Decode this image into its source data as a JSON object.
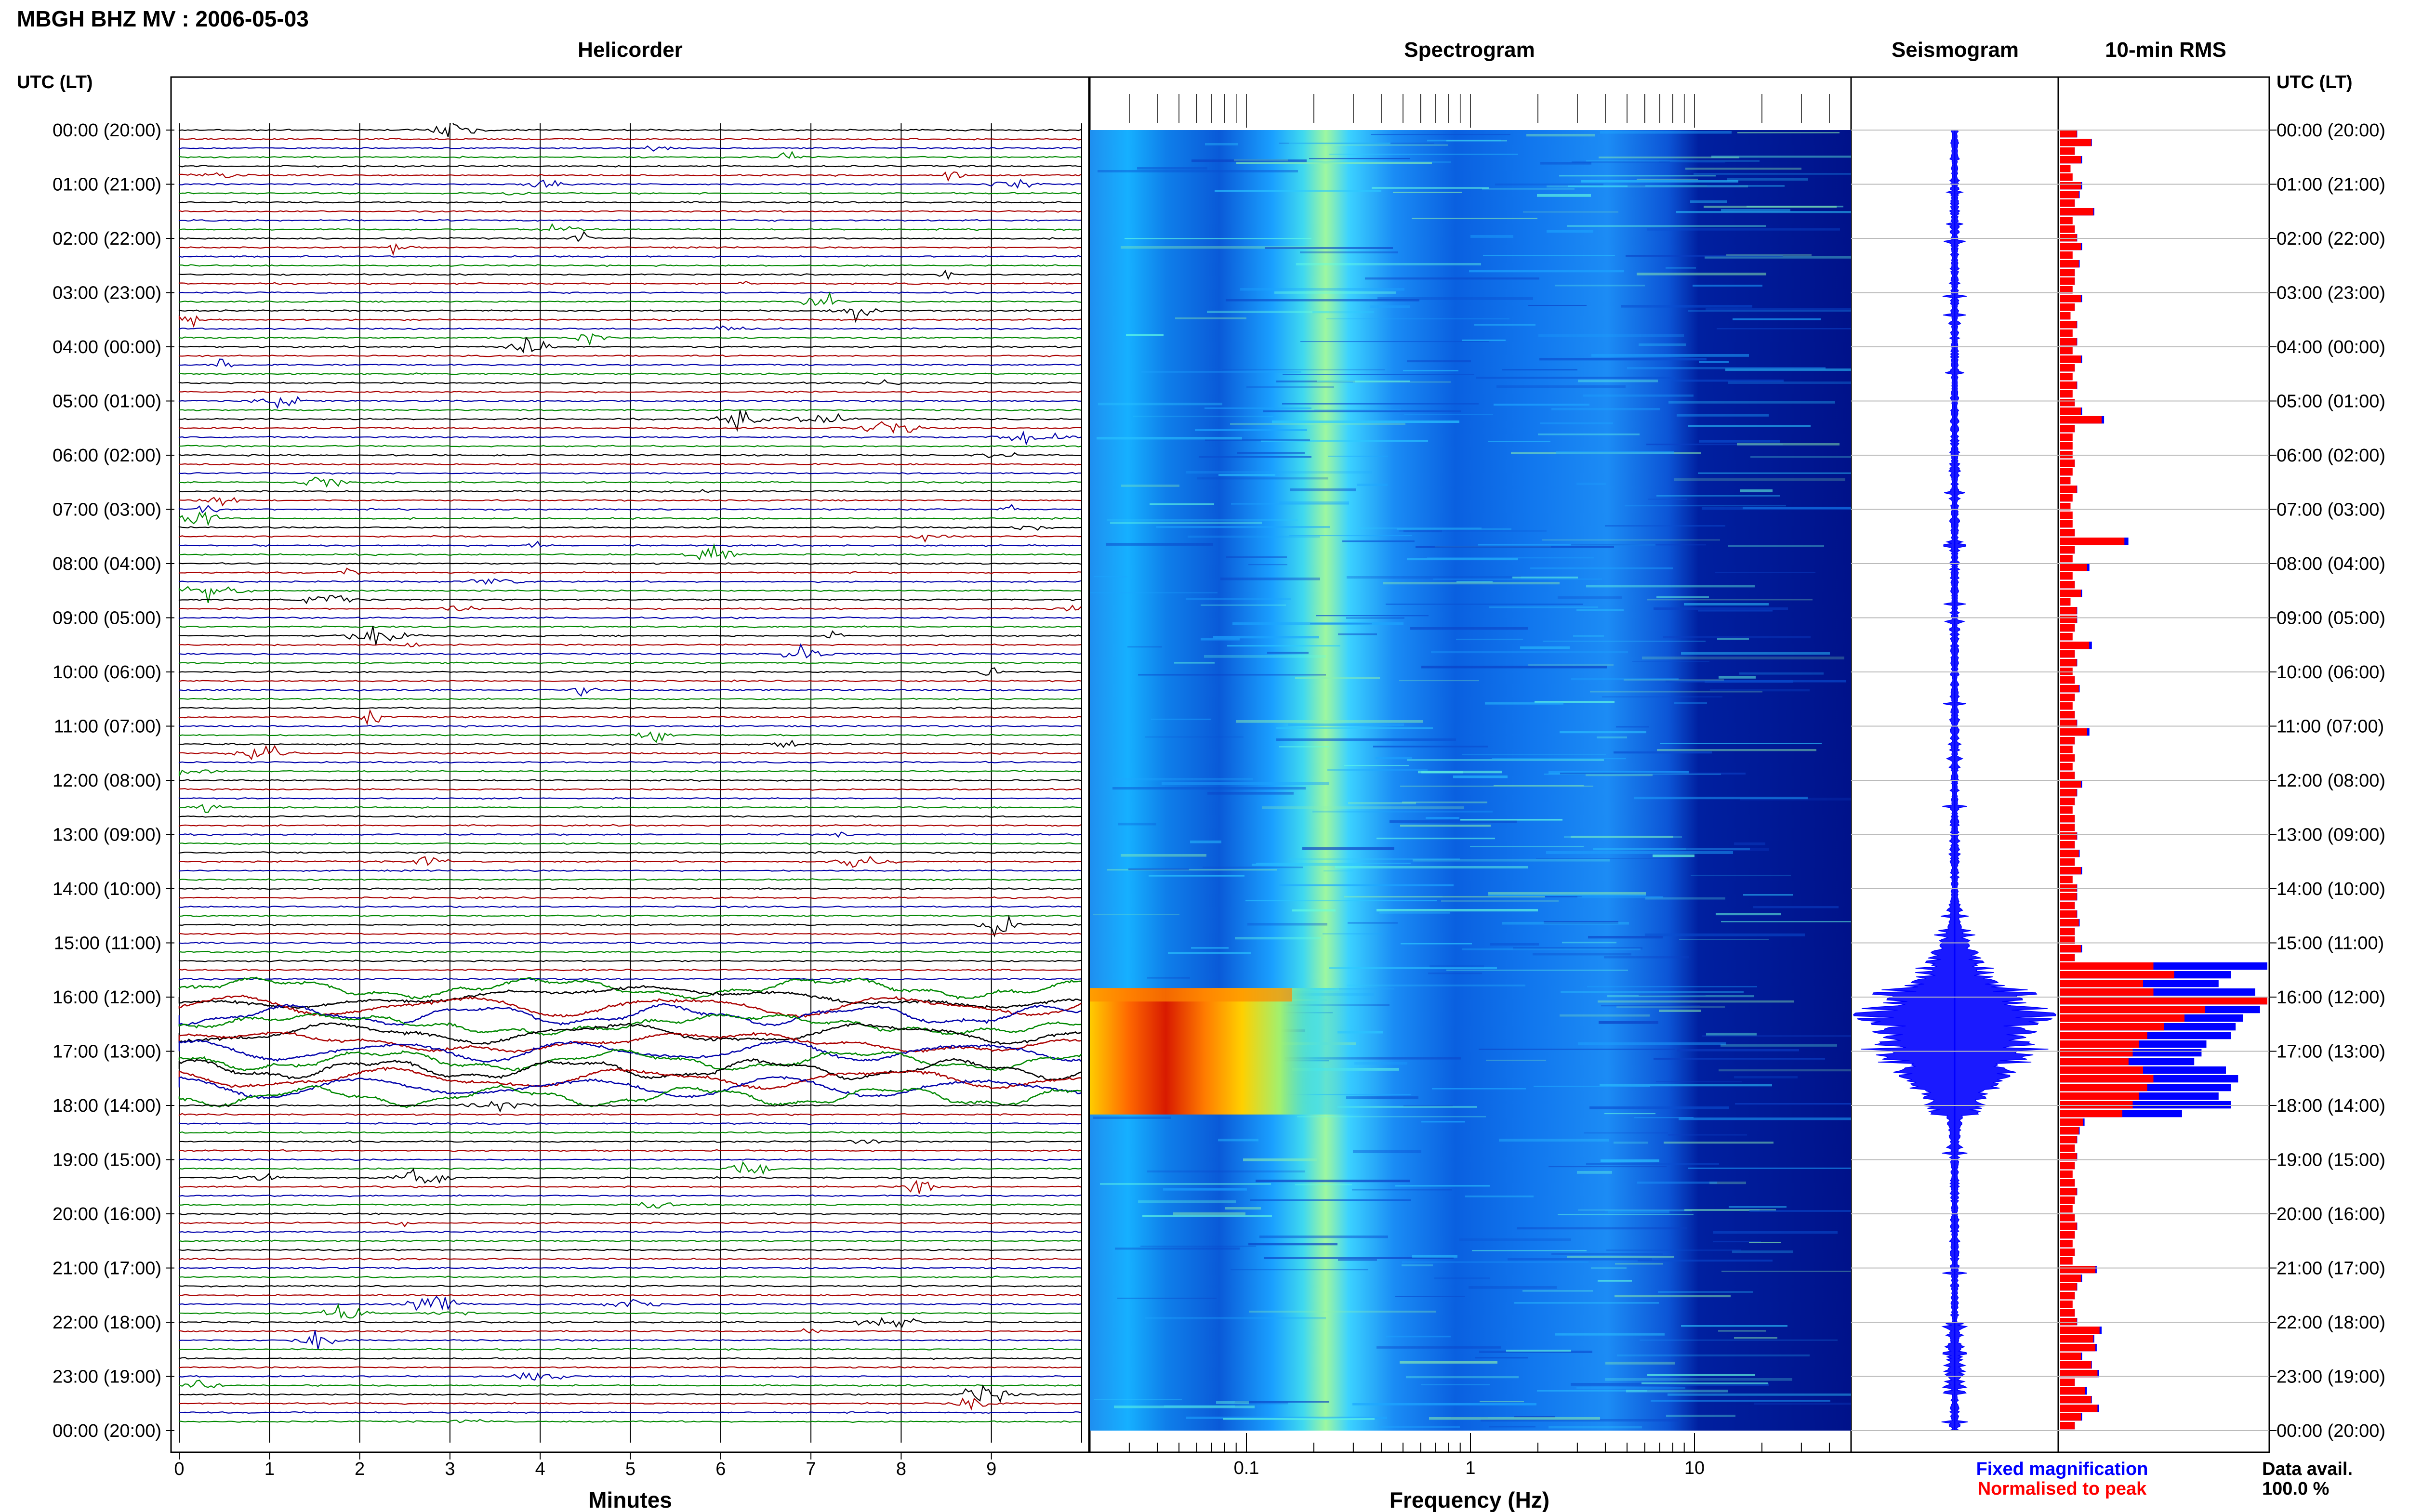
{
  "header": {
    "title": "MBGH BHZ MV : 2006-05-03"
  },
  "panels": {
    "helicorder": "Helicorder",
    "spectrogram": "Spectrogram",
    "seismogram": "Seismogram",
    "rms": "10-min RMS"
  },
  "axes": {
    "utc_label": "UTC (LT)",
    "minutes_label": "Minutes",
    "frequency_label": "Frequency (Hz)"
  },
  "legend": {
    "fixed": "Fixed magnification",
    "normalised": "Normalised to peak",
    "data_avail_label": "Data avail.",
    "data_avail_value": "100.0 %"
  },
  "colors": {
    "fixed": "#0000ff",
    "normalised": "#ff0000",
    "trace_cycle": [
      "#000000",
      "#aa0000",
      "#0000aa",
      "#008800"
    ]
  },
  "chart_data": [
    {
      "type": "line",
      "name": "helicorder",
      "xlabel": "Minutes",
      "xlim": [
        0,
        10
      ],
      "x_ticks": [
        "0",
        "1",
        "2",
        "3",
        "4",
        "5",
        "6",
        "7",
        "8",
        "9"
      ],
      "time_ticks": [
        "00:00 (20:00)",
        "01:00 (21:00)",
        "02:00 (22:00)",
        "03:00 (23:00)",
        "04:00 (00:00)",
        "05:00 (01:00)",
        "06:00 (02:00)",
        "07:00 (03:00)",
        "08:00 (04:00)",
        "09:00 (05:00)",
        "10:00 (06:00)",
        "11:00 (07:00)",
        "12:00 (08:00)",
        "13:00 (09:00)",
        "14:00 (10:00)",
        "15:00 (11:00)",
        "16:00 (12:00)",
        "17:00 (13:00)",
        "18:00 (14:00)",
        "19:00 (15:00)",
        "20:00 (16:00)",
        "21:00 (17:00)",
        "22:00 (18:00)",
        "23:00 (19:00)",
        "00:00 (20:00)"
      ],
      "rows_per_hour": 6,
      "large_event_start_utc": "15:50",
      "large_event_end_utc": "18:00"
    },
    {
      "type": "heatmap",
      "name": "spectrogram",
      "xlabel": "Frequency (Hz)",
      "x_scale": "log",
      "xlim": [
        0.02,
        50
      ],
      "x_ticks": [
        "0.1",
        "1",
        "10"
      ],
      "peak_energy_band_hz": [
        0.02,
        0.15
      ],
      "peak_energy_utc": [
        "15:50",
        "18:10"
      ]
    },
    {
      "type": "area",
      "name": "seismogram",
      "max_amplitude_utc": "16:30"
    },
    {
      "type": "bar",
      "name": "rms",
      "orientation": "horizontal",
      "interval_minutes": 10,
      "series": [
        {
          "name": "Fixed magnification",
          "values": [
            0.7,
            1.3,
            0.6,
            0.9,
            0.4,
            0.5,
            0.9,
            0.8,
            0.6,
            1.4,
            0.5,
            0.6,
            0.7,
            0.9,
            0.5,
            0.8,
            0.6,
            0.6,
            0.5,
            0.9,
            0.6,
            0.4,
            0.7,
            0.5,
            0.7,
            0.5,
            0.9,
            0.6,
            0.5,
            0.7,
            0.5,
            0.6,
            0.9,
            1.8,
            0.6,
            0.5,
            0.5,
            0.5,
            0.6,
            0.5,
            0.4,
            0.7,
            0.5,
            0.4,
            0.5,
            0.5,
            0.6,
            2.8,
            0.6,
            0.5,
            1.2,
            0.5,
            0.6,
            0.9,
            0.4,
            0.7,
            0.7,
            0.6,
            0.5,
            1.3,
            0.6,
            0.7,
            0.5,
            0.6,
            0.8,
            0.6,
            0.5,
            0.6,
            0.7,
            1.2,
            0.6,
            0.5,
            0.6,
            0.5,
            0.6,
            0.9,
            0.7,
            0.6,
            0.5,
            0.6,
            0.6,
            0.7,
            0.6,
            0.8,
            0.6,
            0.9,
            0.5,
            0.7,
            0.7,
            0.6,
            0.7,
            0.8,
            0.6,
            0.6,
            0.9,
            0.6,
            8.5,
            7.0,
            6.5,
            8.0,
            9.0,
            8.2,
            7.5,
            7.2,
            7.0,
            6.0,
            5.8,
            5.5,
            6.8,
            7.3,
            7.0,
            6.5,
            7.0,
            5.0,
            1.0,
            0.8,
            0.7,
            0.6,
            0.7,
            0.6,
            0.5,
            0.6,
            0.7,
            0.6,
            0.5,
            0.6,
            0.7,
            0.6,
            0.5,
            0.6,
            0.5,
            1.5,
            0.9,
            0.7,
            0.6,
            0.5,
            0.6,
            0.7,
            1.7,
            1.4,
            1.5,
            0.9,
            1.3,
            1.6,
            0.6,
            1.1,
            1.3,
            1.6,
            0.9,
            0.6
          ],
          "color": "#0000ff"
        },
        {
          "name": "Normalised to peak",
          "values": [
            0.08,
            0.15,
            0.07,
            0.1,
            0.05,
            0.06,
            0.1,
            0.09,
            0.07,
            0.16,
            0.06,
            0.07,
            0.08,
            0.1,
            0.06,
            0.09,
            0.07,
            0.07,
            0.06,
            0.1,
            0.07,
            0.05,
            0.08,
            0.06,
            0.08,
            0.06,
            0.1,
            0.07,
            0.06,
            0.08,
            0.06,
            0.07,
            0.1,
            0.2,
            0.07,
            0.06,
            0.06,
            0.06,
            0.07,
            0.06,
            0.05,
            0.08,
            0.06,
            0.05,
            0.06,
            0.06,
            0.07,
            0.31,
            0.07,
            0.06,
            0.13,
            0.06,
            0.07,
            0.1,
            0.05,
            0.08,
            0.08,
            0.07,
            0.06,
            0.14,
            0.07,
            0.08,
            0.06,
            0.07,
            0.09,
            0.07,
            0.06,
            0.07,
            0.08,
            0.13,
            0.07,
            0.06,
            0.07,
            0.06,
            0.07,
            0.1,
            0.08,
            0.07,
            0.06,
            0.07,
            0.07,
            0.08,
            0.07,
            0.09,
            0.07,
            0.1,
            0.06,
            0.08,
            0.08,
            0.07,
            0.08,
            0.09,
            0.07,
            0.07,
            0.1,
            0.07,
            0.45,
            0.55,
            0.4,
            0.45,
            1.0,
            0.7,
            0.6,
            0.5,
            0.42,
            0.38,
            0.35,
            0.33,
            0.4,
            0.45,
            0.42,
            0.38,
            0.35,
            0.3,
            0.11,
            0.09,
            0.08,
            0.07,
            0.08,
            0.07,
            0.06,
            0.07,
            0.08,
            0.07,
            0.06,
            0.07,
            0.08,
            0.07,
            0.06,
            0.07,
            0.06,
            0.17,
            0.1,
            0.08,
            0.07,
            0.06,
            0.07,
            0.08,
            0.19,
            0.16,
            0.17,
            0.1,
            0.15,
            0.18,
            0.07,
            0.12,
            0.15,
            0.18,
            0.1,
            0.07
          ],
          "color": "#ff0000"
        }
      ]
    }
  ]
}
